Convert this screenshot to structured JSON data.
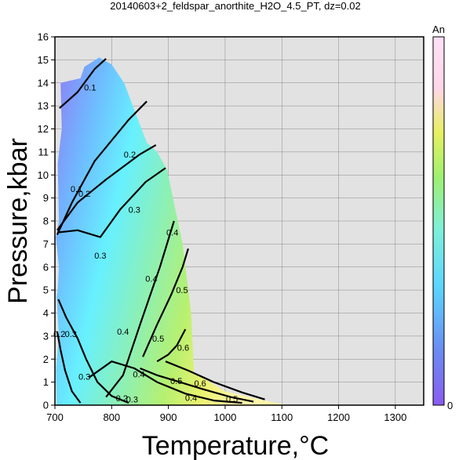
{
  "chart_data": {
    "type": "heatmap",
    "title": "20140603+2_feldspar_anorthite_H2O_4.5_PT, dz=0.02",
    "xlabel": "Temperature,°C",
    "ylabel": "Pressure,kbar",
    "xlim": [
      700,
      1350
    ],
    "ylim": [
      0,
      16
    ],
    "xticks": [
      700,
      800,
      900,
      1000,
      1100,
      1200,
      1300
    ],
    "yticks": [
      0,
      1,
      2,
      3,
      4,
      5,
      6,
      7,
      8,
      9,
      10,
      11,
      12,
      13,
      14,
      15,
      16
    ],
    "grid": true,
    "colorbar": {
      "label": "An",
      "min_label": "0",
      "min": 0,
      "max": 1,
      "position": "right"
    },
    "field_outline": [
      [
        703,
        0
      ],
      [
        1110,
        0
      ],
      [
        1060,
        0.25
      ],
      [
        1000,
        0.6
      ],
      [
        945,
        1.4
      ],
      [
        940,
        4
      ],
      [
        925,
        7
      ],
      [
        908,
        9
      ],
      [
        898,
        10.2
      ],
      [
        880,
        11
      ],
      [
        862,
        11.4
      ],
      [
        845,
        12.5
      ],
      [
        822,
        14
      ],
      [
        800,
        14.8
      ],
      [
        778,
        15.1
      ],
      [
        752,
        14.7
      ],
      [
        745,
        14.2
      ],
      [
        710,
        14.0
      ],
      [
        712,
        12
      ],
      [
        705,
        10.5
      ],
      [
        707,
        8
      ],
      [
        702,
        7.3
      ],
      [
        707,
        6
      ],
      [
        705,
        5
      ],
      [
        703,
        4.7
      ],
      [
        707,
        3
      ],
      [
        702,
        1.5
      ],
      [
        703,
        0
      ]
    ],
    "contours": [
      {
        "value": 0.1,
        "points": [
          [
            708,
            12.9
          ],
          [
            740,
            13.6
          ],
          [
            770,
            14.6
          ],
          [
            790,
            15.05
          ]
        ]
      },
      {
        "value": 0.1,
        "points": [
          [
            704,
            7.4
          ],
          [
            730,
            8.8
          ],
          [
            770,
            10.6
          ],
          [
            830,
            12.4
          ],
          [
            862,
            13.2
          ]
        ]
      },
      {
        "value": 0.2,
        "points": [
          [
            704,
            7.6
          ],
          [
            740,
            8.8
          ],
          [
            790,
            9.8
          ],
          [
            850,
            10.9
          ],
          [
            878,
            11.3
          ]
        ]
      },
      {
        "value": 0.3,
        "points": [
          [
            704,
            7.5
          ],
          [
            740,
            7.6
          ],
          [
            780,
            7.3
          ],
          [
            815,
            8.5
          ],
          [
            860,
            9.7
          ],
          [
            895,
            10.3
          ]
        ]
      },
      {
        "value": 0.4,
        "points": [
          [
            790,
            0.35
          ],
          [
            820,
            1.3
          ],
          [
            850,
            3.5
          ],
          [
            885,
            6.0
          ],
          [
            910,
            8.0
          ]
        ]
      },
      {
        "value": 0.5,
        "points": [
          [
            855,
            2.1
          ],
          [
            880,
            3.5
          ],
          [
            905,
            4.8
          ],
          [
            925,
            6.0
          ],
          [
            935,
            6.8
          ]
        ]
      },
      {
        "value": 0.6,
        "points": [
          [
            880,
            1.9
          ],
          [
            900,
            2.2
          ],
          [
            915,
            2.6
          ],
          [
            930,
            3.3
          ]
        ]
      },
      {
        "value": 0.4,
        "points": [
          [
            760,
            1.2
          ],
          [
            800,
            1.9
          ],
          [
            840,
            1.6
          ],
          [
            880,
            1.0
          ],
          [
            930,
            0.5
          ],
          [
            980,
            0.2
          ],
          [
            1030,
            0.1
          ]
        ]
      },
      {
        "value": 0.5,
        "points": [
          [
            850,
            1.6
          ],
          [
            880,
            1.3
          ],
          [
            920,
            1.0
          ],
          [
            960,
            0.7
          ],
          [
            1010,
            0.35
          ],
          [
            1050,
            0.15
          ]
        ]
      },
      {
        "value": 0.6,
        "points": [
          [
            895,
            1.9
          ],
          [
            935,
            1.5
          ],
          [
            980,
            1.0
          ],
          [
            1030,
            0.55
          ],
          [
            1070,
            0.25
          ]
        ]
      },
      {
        "value": 0.3,
        "points": [
          [
            706,
            4.6
          ],
          [
            720,
            3.8
          ],
          [
            740,
            2.9
          ],
          [
            755,
            2.0
          ],
          [
            775,
            1.0
          ],
          [
            800,
            0.4
          ],
          [
            830,
            0.1
          ]
        ]
      },
      {
        "value": 0.2,
        "points": [
          [
            704,
            3.2
          ],
          [
            710,
            2.4
          ],
          [
            718,
            1.5
          ],
          [
            730,
            0.6
          ],
          [
            745,
            0.1
          ]
        ]
      }
    ],
    "contour_labels": [
      {
        "text": "0.1",
        "x": 762,
        "y": 13.8
      },
      {
        "text": "0.2",
        "x": 832,
        "y": 10.9
      },
      {
        "text": "0.1",
        "x": 738,
        "y": 9.4
      },
      {
        "text": "0.2",
        "x": 752,
        "y": 9.2
      },
      {
        "text": "0.3",
        "x": 840,
        "y": 8.5
      },
      {
        "text": "0.3",
        "x": 780,
        "y": 6.5
      },
      {
        "text": "0.4",
        "x": 907,
        "y": 7.5
      },
      {
        "text": "0.4",
        "x": 870,
        "y": 5.5
      },
      {
        "text": "0.5",
        "x": 924,
        "y": 5.0
      },
      {
        "text": "0.4",
        "x": 820,
        "y": 3.2
      },
      {
        "text": "0.5",
        "x": 882,
        "y": 2.9
      },
      {
        "text": "0.6",
        "x": 926,
        "y": 2.5
      },
      {
        "text": "0.4",
        "x": 848,
        "y": 1.35
      },
      {
        "text": "0.5",
        "x": 914,
        "y": 1.05
      },
      {
        "text": "0.6",
        "x": 956,
        "y": 0.95
      },
      {
        "text": "0.4",
        "x": 940,
        "y": 0.32
      },
      {
        "text": "0.5",
        "x": 1012,
        "y": 0.28
      },
      {
        "text": "0.2",
        "x": 708,
        "y": 3.1
      },
      {
        "text": "0.3",
        "x": 728,
        "y": 3.1
      },
      {
        "text": "0.3",
        "x": 752,
        "y": 1.25
      },
      {
        "text": "0.2",
        "x": 818,
        "y": 0.3
      },
      {
        "text": "0.3",
        "x": 836,
        "y": 0.25
      }
    ]
  }
}
